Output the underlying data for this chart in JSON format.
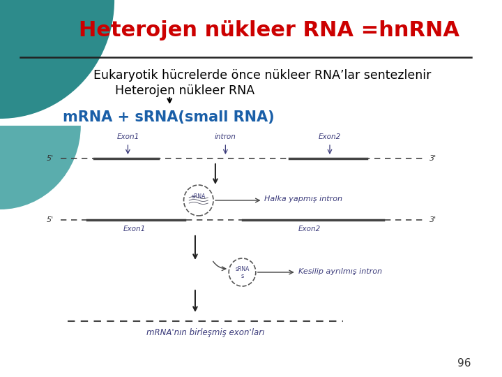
{
  "title": "Heterojen nükleer RNA =hnRNA",
  "title_color": "#cc0000",
  "bg_color": "#ffffff",
  "line1": "Eukaryotik hücrelerde önce nükleer RNA’lar sentezlenir",
  "line2": "Heterojen nükleer RNA",
  "line3_part1": "mRNA + sRNA(smal",
  "line3_part2": "l",
  "line3_part3": " RNA)",
  "line3": "mRNA + sRNA(small RNA)",
  "line3_color": "#1a5fa8",
  "separator_color": "#222222",
  "text_color": "#000000",
  "page_number": "96",
  "teal_color": "#2d8b8b",
  "teal_light": "#5aadad",
  "diagram_color": "#3a3a7a",
  "title_fontsize": 22,
  "body_fontsize": 12.5,
  "mrna_fontsize": 15
}
